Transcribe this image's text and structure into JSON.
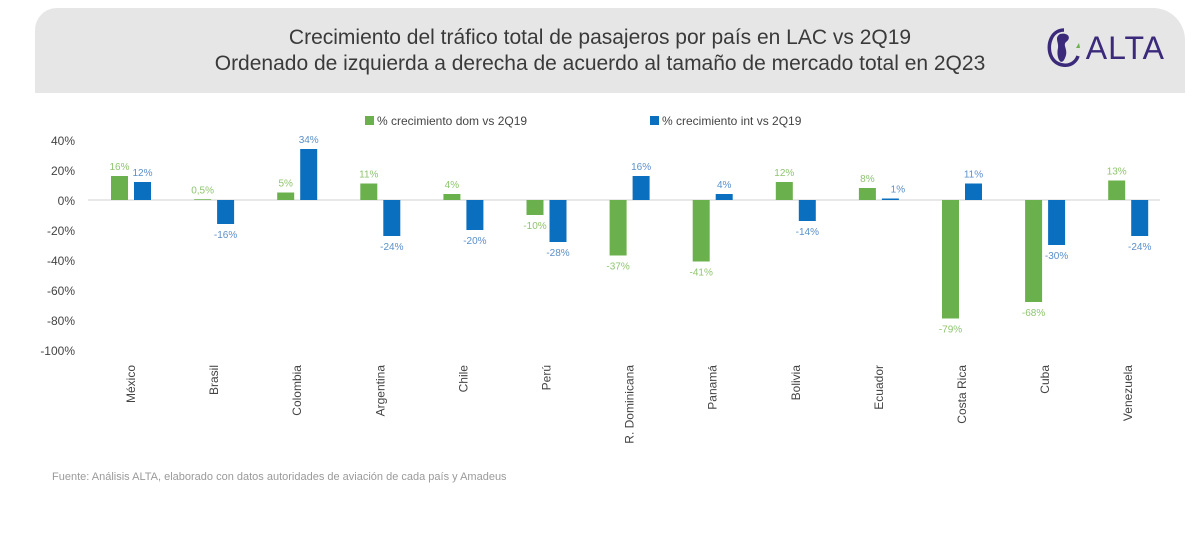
{
  "header": {
    "title_line1": "Crecimiento del tráfico total de pasajeros por país en LAC vs 2Q19",
    "title_line2": "Ordenado de izquierda a derecha de acuerdo al tamaño de mercado total en 2Q23",
    "logo_text": "ALTA",
    "logo_color": "#3b2a7a"
  },
  "source": "Fuente: Análisis ALTA, elaborado con datos autoridades de aviación de cada país y Amadeus",
  "chart_data": {
    "type": "bar",
    "categories": [
      "México",
      "Brasil",
      "Colombia",
      "Argentina",
      "Chile",
      "Perú",
      "R. Dominicana",
      "Panamá",
      "Bolivia",
      "Ecuador",
      "Costa Rica",
      "Cuba",
      "Venezuela"
    ],
    "series": [
      {
        "name": "% crecimiento dom vs 2Q19",
        "color": "#6ab04c",
        "label_color": "#8fc46f",
        "values": [
          16,
          0.5,
          5,
          11,
          4,
          -10,
          -37,
          -41,
          12,
          8,
          -79,
          -68,
          13
        ],
        "labels": [
          "16%",
          "0,5%",
          "5%",
          "11%",
          "4%",
          "-10%",
          "-37%",
          "-41%",
          "12%",
          "8%",
          "-79%",
          "-68%",
          "13%"
        ]
      },
      {
        "name": "% crecimiento int vs 2Q19",
        "color": "#0b6fbf",
        "label_color": "#5b8fc9",
        "values": [
          12,
          -16,
          34,
          -24,
          -20,
          -28,
          16,
          4,
          -14,
          1,
          11,
          -30,
          -24
        ],
        "labels": [
          "12%",
          "-16%",
          "34%",
          "-24%",
          "-20%",
          "-28%",
          "16%",
          "4%",
          "-14%",
          "1%",
          "11%",
          "-30%",
          "-24%"
        ]
      }
    ],
    "yticks": [
      "40%",
      "20%",
      "0%",
      "-20%",
      "-40%",
      "-60%",
      "-80%",
      "-100%"
    ],
    "ytick_values": [
      40,
      20,
      0,
      -20,
      -40,
      -60,
      -80,
      -100
    ],
    "ylim": [
      -100,
      40
    ],
    "grid": false,
    "legend": "top"
  }
}
